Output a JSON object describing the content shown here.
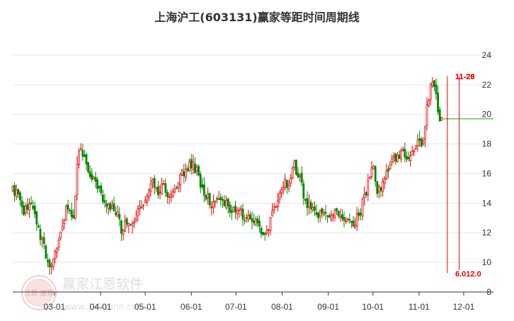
{
  "title": "上海沪工(603131)赢家等距时间周期线",
  "watermark": {
    "brand": "赢家江恩软件",
    "url": "www.360gann.com",
    "seal_text": "江恩 赢家"
  },
  "colors": {
    "up": "#e60000",
    "down": "#008800",
    "grid": "#e6e6e6",
    "axis": "#333333",
    "cycle_line": "#e60000",
    "level_line": "#00aa00",
    "annotation": "#e60000"
  },
  "chart_data": {
    "type": "candlestick",
    "title": "上海沪工(603131)赢家等距时间周期线",
    "x_tick_labels": [
      "03-01",
      "04-01",
      "05-01",
      "06-01",
      "07-01",
      "08-01",
      "09-01",
      "10-01",
      "11-01",
      "12-01"
    ],
    "y_ticks": [
      8,
      10,
      12,
      14,
      16,
      18,
      20,
      22,
      24
    ],
    "ylim": [
      8,
      25
    ],
    "grid": true,
    "x_start": "02-01",
    "x_end": "12-21",
    "series_path": [
      [
        "02-01",
        15.0
      ],
      [
        "02-06",
        14.5
      ],
      [
        "02-09",
        13.3
      ],
      [
        "02-13",
        14.4
      ],
      [
        "02-17",
        12.6
      ],
      [
        "02-21",
        11.3
      ],
      [
        "02-26",
        9.7
      ],
      [
        "03-01",
        10.6
      ],
      [
        "03-05",
        12.0
      ],
      [
        "03-09",
        13.6
      ],
      [
        "03-14",
        13.0
      ],
      [
        "03-17",
        18.0
      ],
      [
        "03-21",
        17.0
      ],
      [
        "03-27",
        15.6
      ],
      [
        "04-01",
        14.6
      ],
      [
        "04-06",
        14.0
      ],
      [
        "04-11",
        13.6
      ],
      [
        "04-15",
        12.2
      ],
      [
        "04-19",
        12.6
      ],
      [
        "04-24",
        12.9
      ],
      [
        "05-01",
        14.2
      ],
      [
        "05-05",
        15.6
      ],
      [
        "05-09",
        14.6
      ],
      [
        "05-13",
        15.2
      ],
      [
        "05-18",
        14.2
      ],
      [
        "05-23",
        15.6
      ],
      [
        "06-01",
        16.6
      ],
      [
        "06-05",
        16.1
      ],
      [
        "06-09",
        14.7
      ],
      [
        "06-15",
        14.0
      ],
      [
        "06-19",
        14.4
      ],
      [
        "06-23",
        14.0
      ],
      [
        "06-28",
        13.6
      ],
      [
        "07-05",
        13.3
      ],
      [
        "07-10",
        13.0
      ],
      [
        "07-15",
        12.7
      ],
      [
        "07-19",
        12.0
      ],
      [
        "07-24",
        12.7
      ],
      [
        "07-28",
        14.0
      ],
      [
        "08-02",
        15.4
      ],
      [
        "08-06",
        15.0
      ],
      [
        "08-09",
        16.7
      ],
      [
        "08-13",
        15.6
      ],
      [
        "08-17",
        14.0
      ],
      [
        "08-22",
        13.5
      ],
      [
        "08-28",
        13.1
      ],
      [
        "09-01",
        12.9
      ],
      [
        "09-05",
        13.4
      ],
      [
        "09-09",
        13.1
      ],
      [
        "09-14",
        13.0
      ],
      [
        "09-18",
        12.7
      ],
      [
        "09-22",
        13.3
      ],
      [
        "09-26",
        14.6
      ],
      [
        "10-01",
        16.9
      ],
      [
        "10-04",
        14.9
      ],
      [
        "10-09",
        15.5
      ],
      [
        "10-13",
        16.7
      ],
      [
        "10-17",
        17.1
      ],
      [
        "10-21",
        17.5
      ],
      [
        "10-25",
        17.0
      ],
      [
        "10-30",
        18.2
      ],
      [
        "11-03",
        17.8
      ],
      [
        "11-06",
        20.2
      ],
      [
        "11-10",
        22.5
      ],
      [
        "11-13",
        21.0
      ],
      [
        "11-15",
        19.4
      ],
      [
        "11-17",
        19.9
      ]
    ],
    "cycle_lines": [
      {
        "label": "11-20",
        "date": "11-20"
      },
      {
        "label": "11-28",
        "date": "11-28"
      }
    ],
    "bottom_annotations": [
      "6.012.0"
    ],
    "level_line": {
      "value": 19.7,
      "from": "11-17"
    }
  }
}
